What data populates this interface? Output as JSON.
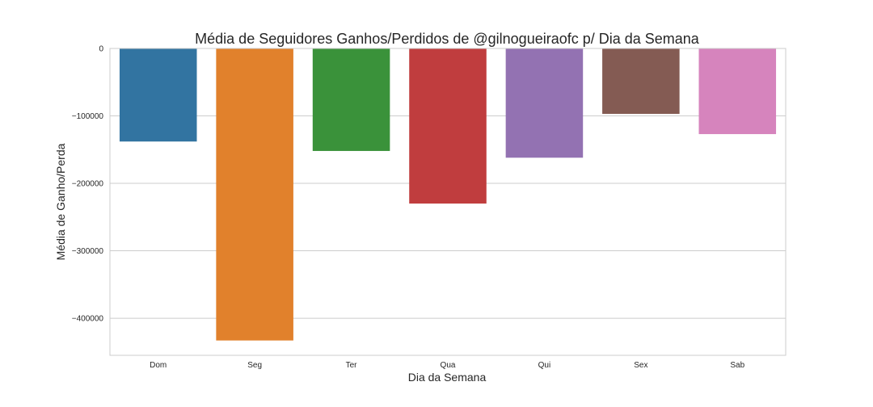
{
  "chart_data": {
    "type": "bar",
    "title": "Média de Seguidores Ganhos/Perdidos de @gilnogueiraofc p/ Dia da Semana",
    "xlabel": "Dia da Semana",
    "ylabel": "Média de Ganho/Perda",
    "categories": [
      "Dom",
      "Seg",
      "Ter",
      "Qua",
      "Qui",
      "Sex",
      "Sab"
    ],
    "values": [
      -138000,
      -433000,
      -152000,
      -230000,
      -162000,
      -97000,
      -127000
    ],
    "colors": [
      "#3274a1",
      "#e1812c",
      "#3a923a",
      "#c03d3e",
      "#9372b2",
      "#845b53",
      "#d684bd"
    ],
    "ylim": [
      -455000,
      0
    ],
    "yticks": [
      0,
      -100000,
      -200000,
      -300000,
      -400000
    ],
    "ytick_labels": [
      "0",
      "−100000",
      "−200000",
      "−300000",
      "−400000"
    ],
    "grid": "horizontal"
  }
}
